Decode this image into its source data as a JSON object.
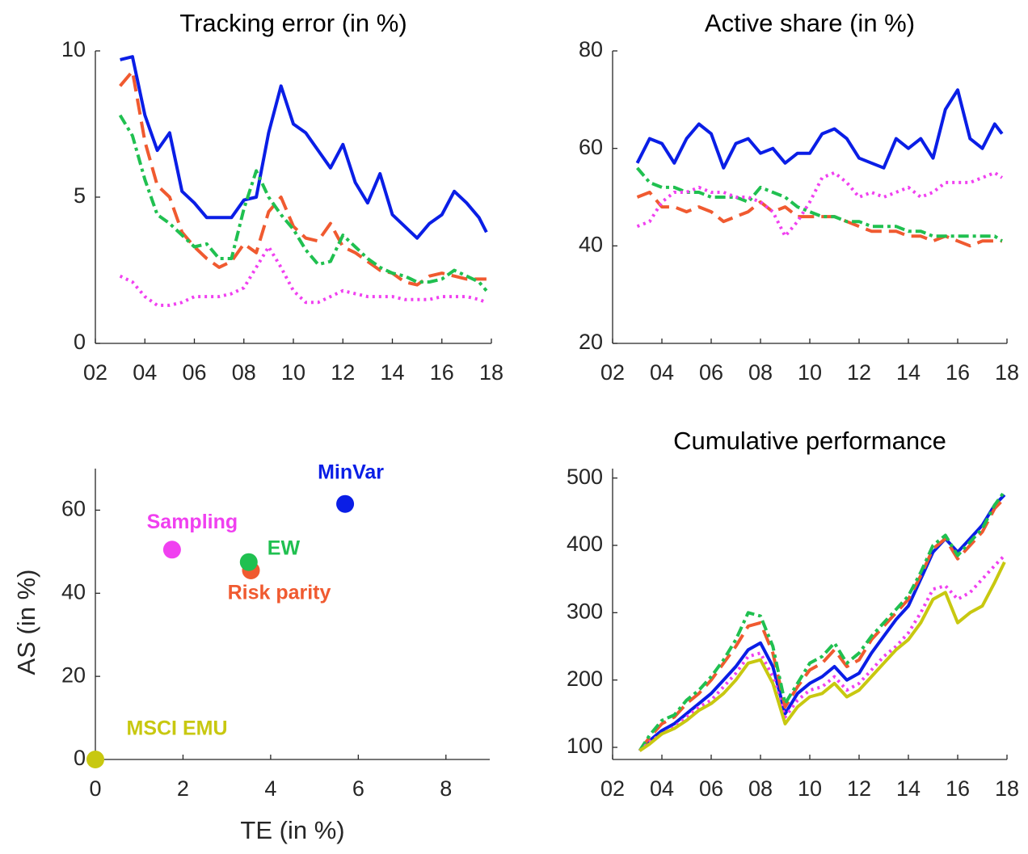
{
  "chart_data": [
    {
      "type": "line",
      "title": "Tracking error (in %)",
      "x": [
        3,
        3.5,
        4,
        4.5,
        5,
        5.5,
        6,
        6.5,
        7,
        7.5,
        8,
        8.5,
        9,
        9.5,
        10,
        10.5,
        11,
        11.5,
        12,
        12.5,
        13,
        13.5,
        14,
        14.5,
        15,
        15.5,
        16,
        16.5,
        17,
        17.5,
        17.8
      ],
      "series": [
        {
          "color": "#0a1ee6",
          "style": "solid",
          "values": [
            9.7,
            9.8,
            7.8,
            6.6,
            7.2,
            5.2,
            4.8,
            4.3,
            4.3,
            4.3,
            4.9,
            5.0,
            7.2,
            8.8,
            7.5,
            7.2,
            6.6,
            6.0,
            6.8,
            5.5,
            4.8,
            5.8,
            4.4,
            4.0,
            3.6,
            4.1,
            4.4,
            5.2,
            4.8,
            4.3,
            3.8
          ]
        },
        {
          "color": "#f05a30",
          "style": "dashed",
          "values": [
            8.8,
            9.3,
            6.9,
            5.4,
            5.0,
            3.8,
            3.3,
            2.9,
            2.6,
            2.8,
            3.4,
            3.1,
            4.5,
            5.0,
            4.0,
            3.6,
            3.5,
            4.1,
            3.3,
            3.1,
            2.8,
            2.5,
            2.4,
            2.1,
            2.0,
            2.3,
            2.4,
            2.3,
            2.2,
            2.2,
            2.2
          ]
        },
        {
          "color": "#20c050",
          "style": "dashdot",
          "values": [
            7.8,
            7.1,
            5.6,
            4.4,
            4.1,
            3.7,
            3.3,
            3.4,
            2.9,
            2.9,
            4.6,
            5.9,
            5.0,
            4.4,
            3.9,
            3.2,
            2.7,
            2.8,
            3.7,
            3.3,
            2.9,
            2.6,
            2.4,
            2.3,
            2.1,
            2.1,
            2.2,
            2.5,
            2.3,
            2.1,
            1.8
          ]
        },
        {
          "color": "#f040f0",
          "style": "dotted",
          "values": [
            2.3,
            2.1,
            1.6,
            1.3,
            1.3,
            1.4,
            1.6,
            1.6,
            1.6,
            1.7,
            1.9,
            2.6,
            3.3,
            2.6,
            1.8,
            1.4,
            1.4,
            1.6,
            1.8,
            1.7,
            1.6,
            1.6,
            1.6,
            1.5,
            1.5,
            1.5,
            1.6,
            1.6,
            1.6,
            1.5,
            1.4
          ]
        }
      ],
      "xlim": [
        2,
        18
      ],
      "ylim": [
        0,
        10
      ],
      "xticks": [
        {
          "value": 2,
          "label": "02"
        },
        {
          "value": 4,
          "label": "04"
        },
        {
          "value": 6,
          "label": "06"
        },
        {
          "value": 8,
          "label": "08"
        },
        10,
        12,
        14,
        16,
        18
      ],
      "yticks": [
        0,
        5,
        10
      ]
    },
    {
      "type": "line",
      "title": "Active share (in %)",
      "x": [
        3,
        3.5,
        4,
        4.5,
        5,
        5.5,
        6,
        6.5,
        7,
        7.5,
        8,
        8.5,
        9,
        9.5,
        10,
        10.5,
        11,
        11.5,
        12,
        12.5,
        13,
        13.5,
        14,
        14.5,
        15,
        15.5,
        16,
        16.5,
        17,
        17.5,
        17.8
      ],
      "series": [
        {
          "color": "#0a1ee6",
          "style": "solid",
          "values": [
            57,
            62,
            61,
            57,
            62,
            65,
            63,
            56,
            61,
            62,
            59,
            60,
            57,
            59,
            59,
            63,
            64,
            62,
            58,
            57,
            56,
            62,
            60,
            62,
            58,
            68,
            72,
            62,
            60,
            65,
            63
          ]
        },
        {
          "color": "#f05a30",
          "style": "dashed",
          "values": [
            50,
            51,
            48,
            48,
            47,
            48,
            47,
            45,
            46,
            47,
            49,
            47,
            48,
            46,
            46,
            46,
            46,
            45,
            44,
            43,
            43,
            43,
            42,
            42,
            41,
            42,
            41,
            40,
            41,
            41,
            41
          ]
        },
        {
          "color": "#20c050",
          "style": "dashdot",
          "values": [
            56,
            53,
            52,
            52,
            51,
            51,
            50,
            50,
            50,
            49,
            52,
            51,
            50,
            48,
            47,
            46,
            46,
            45,
            45,
            44,
            44,
            44,
            43,
            43,
            42,
            42,
            42,
            42,
            42,
            42,
            41
          ]
        },
        {
          "color": "#f040f0",
          "style": "dotted",
          "values": [
            44,
            45,
            49,
            51,
            51,
            52,
            51,
            51,
            50,
            50,
            49,
            47,
            42,
            45,
            49,
            54,
            55,
            53,
            50,
            51,
            50,
            51,
            52,
            50,
            51,
            53,
            53,
            53,
            54,
            55,
            54
          ]
        }
      ],
      "xlim": [
        2,
        18
      ],
      "ylim": [
        20,
        80
      ],
      "xticks": [
        {
          "value": 2,
          "label": "02"
        },
        {
          "value": 4,
          "label": "04"
        },
        {
          "value": 6,
          "label": "06"
        },
        {
          "value": 8,
          "label": "08"
        },
        10,
        12,
        14,
        16,
        18
      ],
      "yticks": [
        20,
        40,
        60,
        80
      ]
    },
    {
      "type": "scatter",
      "x_label": "TE (in %)",
      "y_label": "AS (in %)",
      "series": [
        {
          "name": "MinVar",
          "color": "#0a1ee6",
          "x": [
            5.7
          ],
          "values": [
            61.5
          ]
        },
        {
          "name": "Risk parity",
          "color": "#f05a30",
          "x": [
            3.55
          ],
          "values": [
            45.5
          ]
        },
        {
          "name": "EW",
          "color": "#20c050",
          "x": [
            3.5
          ],
          "values": [
            47.5
          ]
        },
        {
          "name": "Sampling",
          "color": "#f040f0",
          "x": [
            1.75
          ],
          "values": [
            50.5
          ]
        },
        {
          "name": "MSCI EMU",
          "color": "#c8c810",
          "x": [
            0
          ],
          "values": [
            0
          ]
        }
      ],
      "xlim": [
        0,
        9
      ],
      "ylim": [
        0,
        70
      ],
      "xticks": [
        0,
        2,
        4,
        6,
        8
      ],
      "yticks": [
        0,
        20,
        40,
        60
      ]
    },
    {
      "type": "line",
      "title": "Cumulative performance",
      "x": [
        3.1,
        3.5,
        4,
        4.5,
        5,
        5.5,
        6,
        6.5,
        7,
        7.5,
        8,
        8.5,
        9,
        9.5,
        10,
        10.5,
        11,
        11.5,
        12,
        12.5,
        13,
        13.5,
        14,
        14.5,
        15,
        15.5,
        16,
        16.5,
        17,
        17.5,
        17.9
      ],
      "series": [
        {
          "color": "#0a1ee6",
          "style": "solid",
          "values": [
            95,
            110,
            125,
            135,
            150,
            165,
            180,
            200,
            220,
            245,
            255,
            220,
            150,
            180,
            195,
            205,
            220,
            200,
            210,
            240,
            265,
            290,
            310,
            350,
            390,
            410,
            390,
            410,
            430,
            460,
            475
          ]
        },
        {
          "color": "#f05a30",
          "style": "dashed",
          "values": [
            95,
            115,
            135,
            145,
            165,
            180,
            200,
            225,
            250,
            280,
            285,
            240,
            160,
            190,
            215,
            225,
            245,
            220,
            230,
            260,
            280,
            300,
            320,
            355,
            395,
            410,
            380,
            400,
            420,
            455,
            470
          ]
        },
        {
          "color": "#20c050",
          "style": "dashdot",
          "values": [
            95,
            118,
            140,
            148,
            170,
            185,
            205,
            230,
            260,
            300,
            295,
            250,
            165,
            195,
            225,
            235,
            255,
            225,
            240,
            265,
            285,
            305,
            325,
            360,
            400,
            415,
            385,
            405,
            425,
            460,
            480
          ]
        },
        {
          "color": "#f040f0",
          "style": "dotted",
          "values": [
            95,
            108,
            120,
            130,
            145,
            160,
            170,
            190,
            210,
            235,
            240,
            205,
            145,
            170,
            185,
            190,
            205,
            185,
            195,
            215,
            235,
            250,
            270,
            300,
            335,
            340,
            320,
            330,
            350,
            370,
            385
          ]
        },
        {
          "color": "#c8c810",
          "style": "solid",
          "values": [
            95,
            105,
            120,
            128,
            140,
            155,
            165,
            180,
            200,
            225,
            230,
            195,
            135,
            160,
            175,
            180,
            195,
            175,
            185,
            205,
            225,
            245,
            260,
            285,
            320,
            330,
            285,
            300,
            310,
            345,
            375
          ]
        }
      ],
      "xlim": [
        2,
        18
      ],
      "ylim": [
        82,
        514
      ],
      "xticks": [
        {
          "value": 2,
          "label": "02"
        },
        {
          "value": 4,
          "label": "04"
        },
        {
          "value": 6,
          "label": "06"
        },
        {
          "value": 8,
          "label": "08"
        },
        10,
        12,
        14,
        16,
        18
      ],
      "yticks": [
        100,
        200,
        300,
        400,
        500
      ]
    }
  ]
}
